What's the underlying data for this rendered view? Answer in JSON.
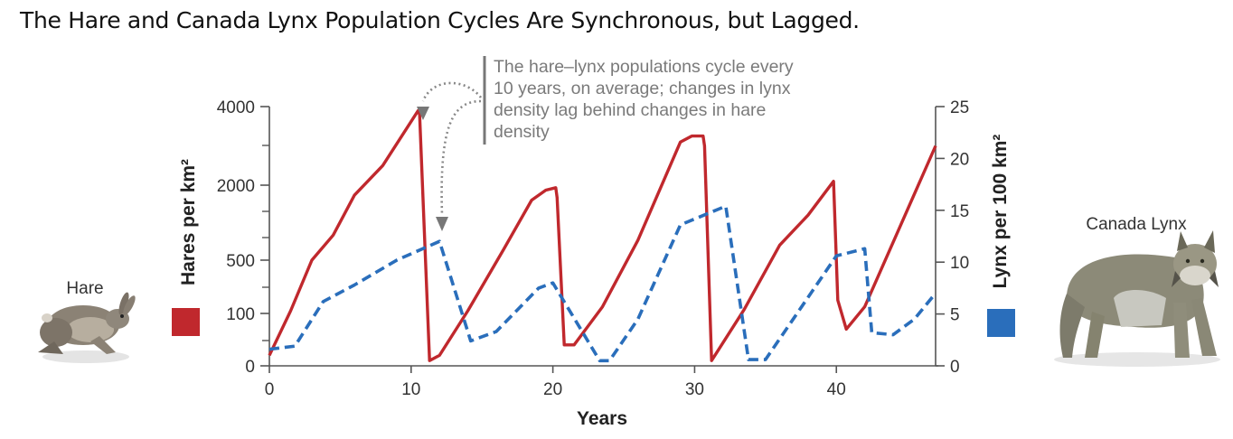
{
  "title": "The Hare and Canada Lynx Population Cycles Are Synchronous, but Lagged.",
  "animals": {
    "left_label": "Hare",
    "right_label": "Canada Lynx"
  },
  "colors": {
    "hare": "#c0282d",
    "lynx": "#2a6ebb",
    "axis": "#555555",
    "callout": "#7a7a7a"
  },
  "chart_data": {
    "type": "line",
    "xlabel": "Years",
    "ylabel_left": "Hares per km²",
    "ylabel_right": "Lynx per 100 km²",
    "x_ticks": [
      0,
      10,
      20,
      30,
      40
    ],
    "xlim": [
      0,
      47
    ],
    "left_axis": {
      "tick_labels": [
        "0",
        "100",
        "500",
        "2000",
        "4000"
      ],
      "tick_values": [
        0,
        100,
        500,
        2000,
        4000
      ],
      "note": "non-linear scale"
    },
    "right_axis": {
      "ylim": [
        0,
        25
      ],
      "ticks": [
        0,
        5,
        10,
        15,
        20,
        25
      ]
    },
    "series": [
      {
        "name": "Hares per km²",
        "axis": "left",
        "style": "solid",
        "x": [
          0,
          1.5,
          3,
          4.5,
          6,
          8,
          10.5,
          10.6,
          11.3,
          12,
          14,
          16.5,
          18.5,
          19.5,
          20.2,
          20.3,
          20.8,
          21.5,
          23.5,
          26,
          29,
          29.8,
          30.6,
          30.7,
          31.2,
          33.5,
          36,
          38,
          39.8,
          40.1,
          40.7,
          42,
          47
        ],
        "y": [
          20,
          120,
          500,
          1000,
          1800,
          2500,
          3900,
          3800,
          10,
          20,
          120,
          700,
          1700,
          1900,
          1950,
          1750,
          40,
          40,
          150,
          900,
          3100,
          3250,
          3250,
          3000,
          10,
          130,
          800,
          1400,
          2100,
          200,
          70,
          150,
          3000
        ]
      },
      {
        "name": "Lynx per 100 km²",
        "axis": "right",
        "style": "dashed",
        "x": [
          0,
          1.8,
          3.8,
          6,
          9,
          12,
          14.2,
          16,
          19,
          20,
          21.5,
          23.3,
          24,
          26,
          29,
          32.2,
          33.8,
          35,
          37,
          40,
          42,
          42.5,
          44,
          45.5,
          47
        ],
        "y": [
          1.6,
          1.9,
          6.2,
          7.8,
          10.2,
          12,
          2.4,
          3.3,
          7.5,
          8,
          4.6,
          0.5,
          0.5,
          4.5,
          13.6,
          15.4,
          0.6,
          0.6,
          4.6,
          10.6,
          11.3,
          3.2,
          3,
          4.5,
          7
        ]
      }
    ],
    "annotations": [
      {
        "text": "The hare–lynx populations cycle every 10 years, on average; changes in lynx density lag behind changes in hare density",
        "lines": [
          "The hare–lynx populations cycle every",
          "10 years, on average; changes in lynx",
          "density lag behind changes in hare",
          "density"
        ]
      }
    ],
    "legend": [
      {
        "label": "Hares per km²",
        "color": "#c0282d",
        "position": "left"
      },
      {
        "label": "Lynx per 100 km²",
        "color": "#2a6ebb",
        "position": "right"
      }
    ]
  }
}
